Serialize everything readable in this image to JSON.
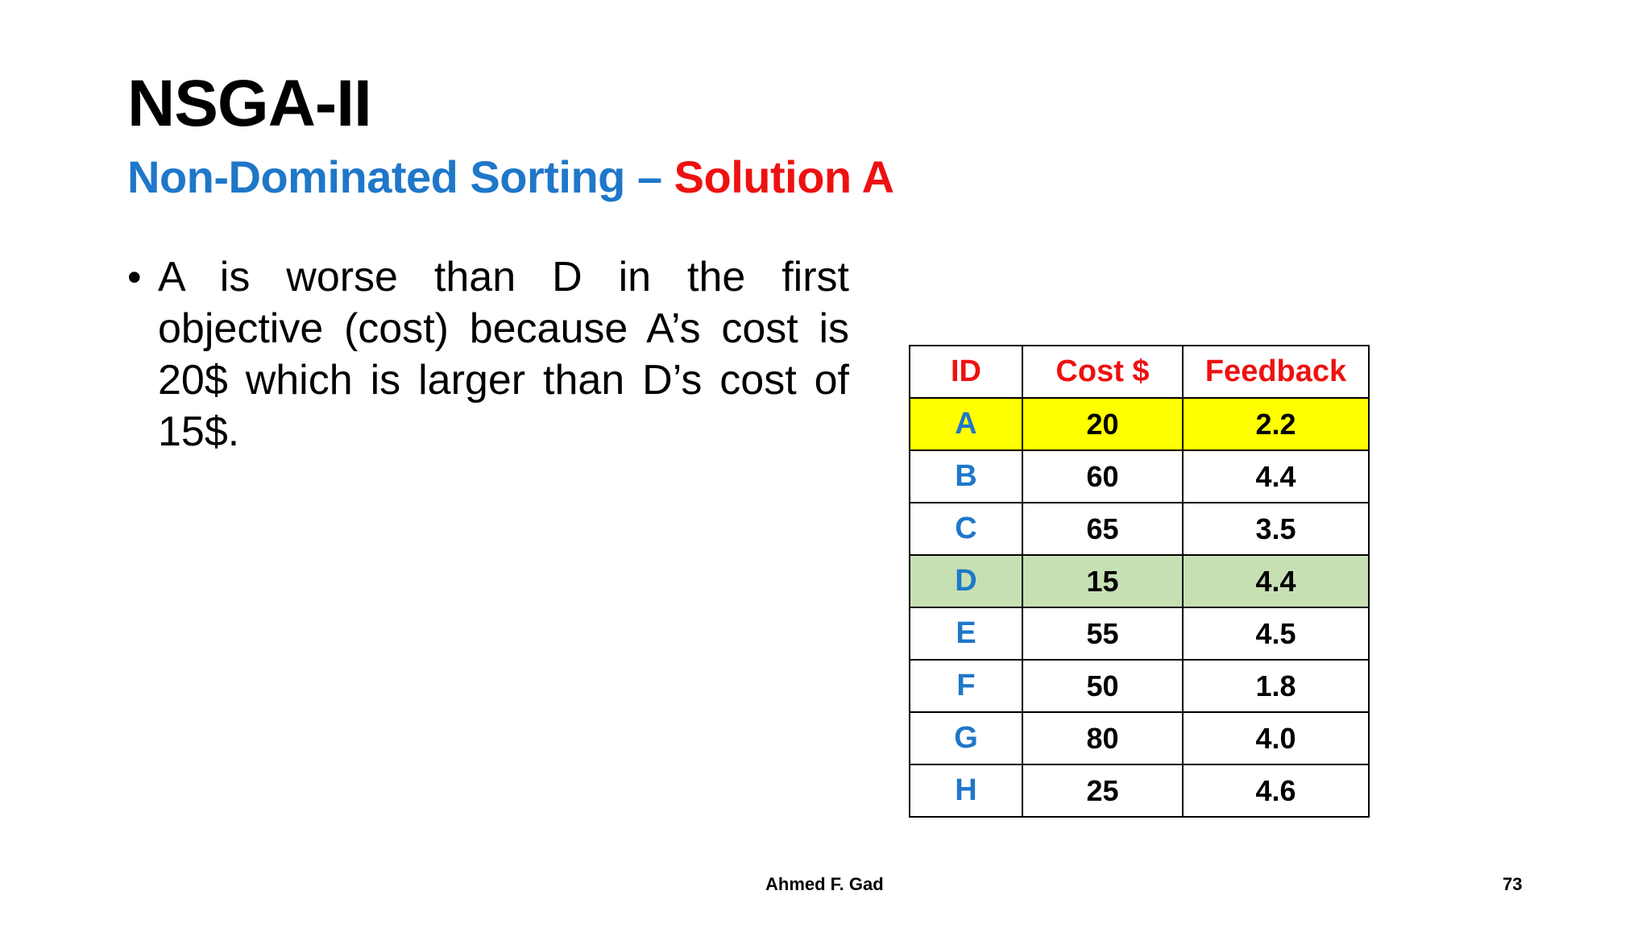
{
  "slide": {
    "title": "NSGA-II",
    "subtitle_part1": "Non-Dominated Sorting – ",
    "subtitle_part2": "Solution A",
    "bullet": "A is worse than D in the first objective (cost) because A’s cost is 20$ which is larger than D’s cost of 15$.",
    "author": "Ahmed F. Gad",
    "page_number": "73"
  },
  "table": {
    "headers": [
      "ID",
      "Cost $",
      "Feedback"
    ],
    "rows": [
      {
        "id": "A",
        "cost": "20",
        "feedback": "2.2",
        "highlight": "yellow"
      },
      {
        "id": "B",
        "cost": "60",
        "feedback": "4.4",
        "highlight": ""
      },
      {
        "id": "C",
        "cost": "65",
        "feedback": "3.5",
        "highlight": ""
      },
      {
        "id": "D",
        "cost": "15",
        "feedback": "4.4",
        "highlight": "green"
      },
      {
        "id": "E",
        "cost": "55",
        "feedback": "4.5",
        "highlight": ""
      },
      {
        "id": "F",
        "cost": "50",
        "feedback": "1.8",
        "highlight": ""
      },
      {
        "id": "G",
        "cost": "80",
        "feedback": "4.0",
        "highlight": ""
      },
      {
        "id": "H",
        "cost": "25",
        "feedback": "4.6",
        "highlight": ""
      }
    ]
  },
  "colors": {
    "title_blue": "#1f77c9",
    "accent_red": "#ee1111",
    "highlight_yellow": "#ffff00",
    "highlight_green": "#c6e0b4"
  }
}
